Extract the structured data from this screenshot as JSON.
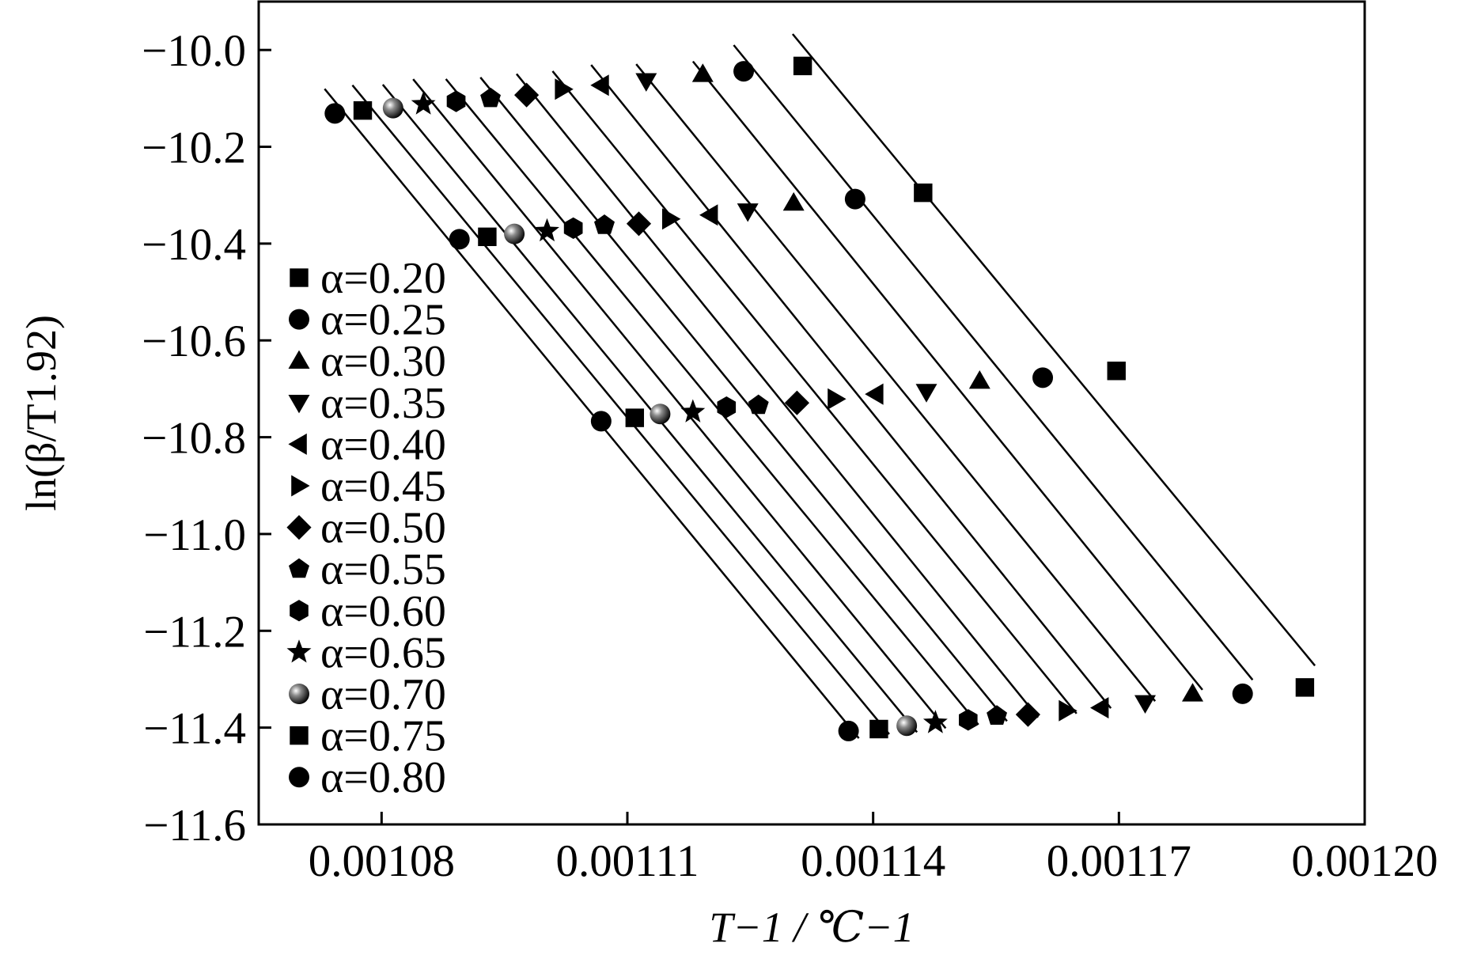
{
  "chart_data": {
    "type": "scatter",
    "fit_lines": true,
    "x_label": "T−1 / ℃−1",
    "y_label": "ln(β/T1.92)",
    "xlim": [
      0.001065,
      0.0012
    ],
    "ylim": [
      -11.6,
      -9.9
    ],
    "xticks": [
      0.00108,
      0.00111,
      0.00114,
      0.00117,
      {
        "value": 0.0012,
        "label": "0.00120"
      }
    ],
    "yticks": [
      {
        "value": -10.0,
        "label": "−10.0"
      },
      {
        "value": -10.2,
        "label": "−10.2"
      },
      {
        "value": -10.4,
        "label": "−10.4"
      },
      {
        "value": -10.6,
        "label": "−10.6"
      },
      {
        "value": -10.8,
        "label": "−10.8"
      },
      {
        "value": -11.0,
        "label": "−11.0"
      },
      {
        "value": -11.2,
        "label": "−11.2"
      },
      {
        "value": -11.4,
        "label": "−11.4"
      },
      {
        "value": -11.6,
        "label": "−11.6"
      }
    ],
    "legend": "upper left",
    "series": [
      {
        "name": "α=0.20",
        "color": "#000000",
        "marker": "square",
        "x": [
          0.0011314,
          0.0011461,
          0.0011697,
          0.0011927
        ],
        "values": [
          -10.033,
          -10.295,
          -10.663,
          -11.317
        ]
      },
      {
        "name": "α=0.25",
        "color": "#000000",
        "marker": "circle",
        "x": [
          0.0011242,
          0.0011378,
          0.0011607,
          0.0011851
        ],
        "values": [
          -10.044,
          -10.308,
          -10.677,
          -11.33
        ]
      },
      {
        "name": "α=0.30",
        "color": "#000000",
        "marker": "triangle-up",
        "x": [
          0.0011192,
          0.0011303,
          0.001153,
          0.001179
        ],
        "values": [
          -10.05,
          -10.316,
          -10.684,
          -11.33
        ]
      },
      {
        "name": "α=0.35",
        "color": "#000000",
        "marker": "triangle-down",
        "x": [
          0.0011123,
          0.0011247,
          0.0011465,
          0.0011732
        ],
        "values": [
          -10.064,
          -10.333,
          -10.706,
          -11.349
        ]
      },
      {
        "name": "α=0.40",
        "color": "#000000",
        "marker": "triangle-left",
        "x": [
          0.0011068,
          0.0011201,
          0.0011403,
          0.0011678
        ],
        "values": [
          -10.073,
          -10.341,
          -10.711,
          -11.359
        ]
      },
      {
        "name": "α=0.45",
        "color": "#000000",
        "marker": "triangle-right",
        "x": [
          0.0011021,
          0.0011152,
          0.0011354,
          0.0011636
        ],
        "values": [
          -10.081,
          -10.349,
          -10.721,
          -11.365
        ]
      },
      {
        "name": "α=0.50",
        "color": "#000000",
        "marker": "diamond",
        "x": [
          0.0010977,
          0.0011114,
          0.0011307,
          0.0011589
        ],
        "values": [
          -10.093,
          -10.359,
          -10.729,
          -11.373
        ]
      },
      {
        "name": "α=0.55",
        "color": "#000000",
        "marker": "pentagon",
        "x": [
          0.0010933,
          0.0011072,
          0.001126,
          0.0011551
        ],
        "values": [
          -10.1,
          -10.362,
          -10.734,
          -11.376
        ]
      },
      {
        "name": "α=0.60",
        "color": "#000000",
        "marker": "hexagon",
        "x": [
          0.0010891,
          0.0011034,
          0.0011221,
          0.0011516
        ],
        "values": [
          -10.106,
          -10.368,
          -10.738,
          -11.384
        ]
      },
      {
        "name": "α=0.65",
        "color": "#000000",
        "marker": "star",
        "x": [
          0.0010851,
          0.0011002,
          0.001118,
          0.0011476
        ],
        "values": [
          -10.112,
          -10.374,
          -10.748,
          -11.39
        ]
      },
      {
        "name": "α=0.70",
        "color": "#000000",
        "marker": "sphere",
        "x": [
          0.0010814,
          0.0010962,
          0.001114,
          0.0011441
        ],
        "values": [
          -10.12,
          -10.38,
          -10.752,
          -11.396
        ]
      },
      {
        "name": "α=0.75",
        "color": "#000000",
        "marker": "square",
        "x": [
          0.0010777,
          0.0010929,
          0.0011109,
          0.0011407
        ],
        "values": [
          -10.125,
          -10.386,
          -10.76,
          -11.403
        ]
      },
      {
        "name": "α=0.80",
        "color": "#000000",
        "marker": "circle",
        "x": [
          0.0010743,
          0.0010895,
          0.0011068,
          0.001137
        ],
        "values": [
          -10.131,
          -10.391,
          -10.767,
          -11.407
        ]
      }
    ]
  }
}
